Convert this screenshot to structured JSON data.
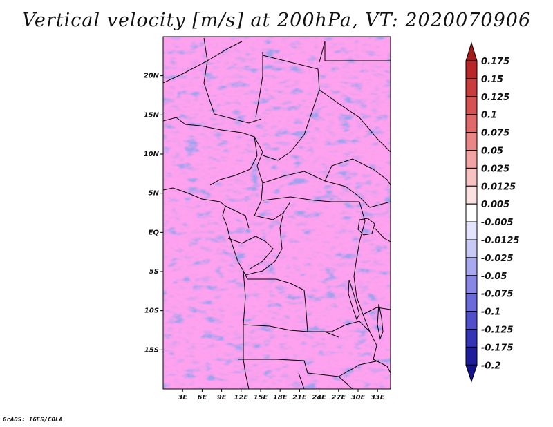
{
  "title": "Vertical velocity [m/s] at 200hPa, VT: 2020070906",
  "footer": "GrADS: IGES/COLA",
  "map": {
    "lon_range": [
      0,
      35
    ],
    "lat_range": [
      -20,
      25
    ],
    "lon_ticks": [
      {
        "value": 3,
        "label": "3E"
      },
      {
        "value": 6,
        "label": "6E"
      },
      {
        "value": 9,
        "label": "9E"
      },
      {
        "value": 12,
        "label": "12E"
      },
      {
        "value": 15,
        "label": "15E"
      },
      {
        "value": 18,
        "label": "18E"
      },
      {
        "value": 21,
        "label": "21E"
      },
      {
        "value": 24,
        "label": "24E"
      },
      {
        "value": 27,
        "label": "27E"
      },
      {
        "value": 30,
        "label": "30E"
      },
      {
        "value": 33,
        "label": "33E"
      }
    ],
    "lat_ticks": [
      {
        "value": 20,
        "label": "20N"
      },
      {
        "value": 15,
        "label": "15N"
      },
      {
        "value": 10,
        "label": "10N"
      },
      {
        "value": 5,
        "label": "5N"
      },
      {
        "value": 0,
        "label": "EQ"
      },
      {
        "value": -5,
        "label": "5S"
      },
      {
        "value": -10,
        "label": "10S"
      },
      {
        "value": -15,
        "label": "15S"
      }
    ]
  },
  "colorbar": {
    "labels": [
      "0.175",
      "0.15",
      "0.125",
      "0.1",
      "0.075",
      "0.05",
      "0.025",
      "0.0125",
      "0.005",
      "-0.005",
      "-0.0125",
      "-0.025",
      "-0.05",
      "-0.075",
      "-0.1",
      "-0.125",
      "-0.175",
      "-0.2"
    ],
    "colors": [
      "#a01a1a",
      "#b82828",
      "#c83c3c",
      "#d65252",
      "#e06a6a",
      "#e98686",
      "#f0a4a4",
      "#f6c2c2",
      "#fbe2e2",
      "#ffffff",
      "#e4e4fc",
      "#c9c9f6",
      "#a9a9ee",
      "#8888e4",
      "#6a6ad8",
      "#4f4fca",
      "#3434b6",
      "#1e1e9c",
      "#14148a"
    ]
  },
  "colors": {
    "positive": "#d65252",
    "negative": "#6a6ad8",
    "border": "#000000"
  }
}
